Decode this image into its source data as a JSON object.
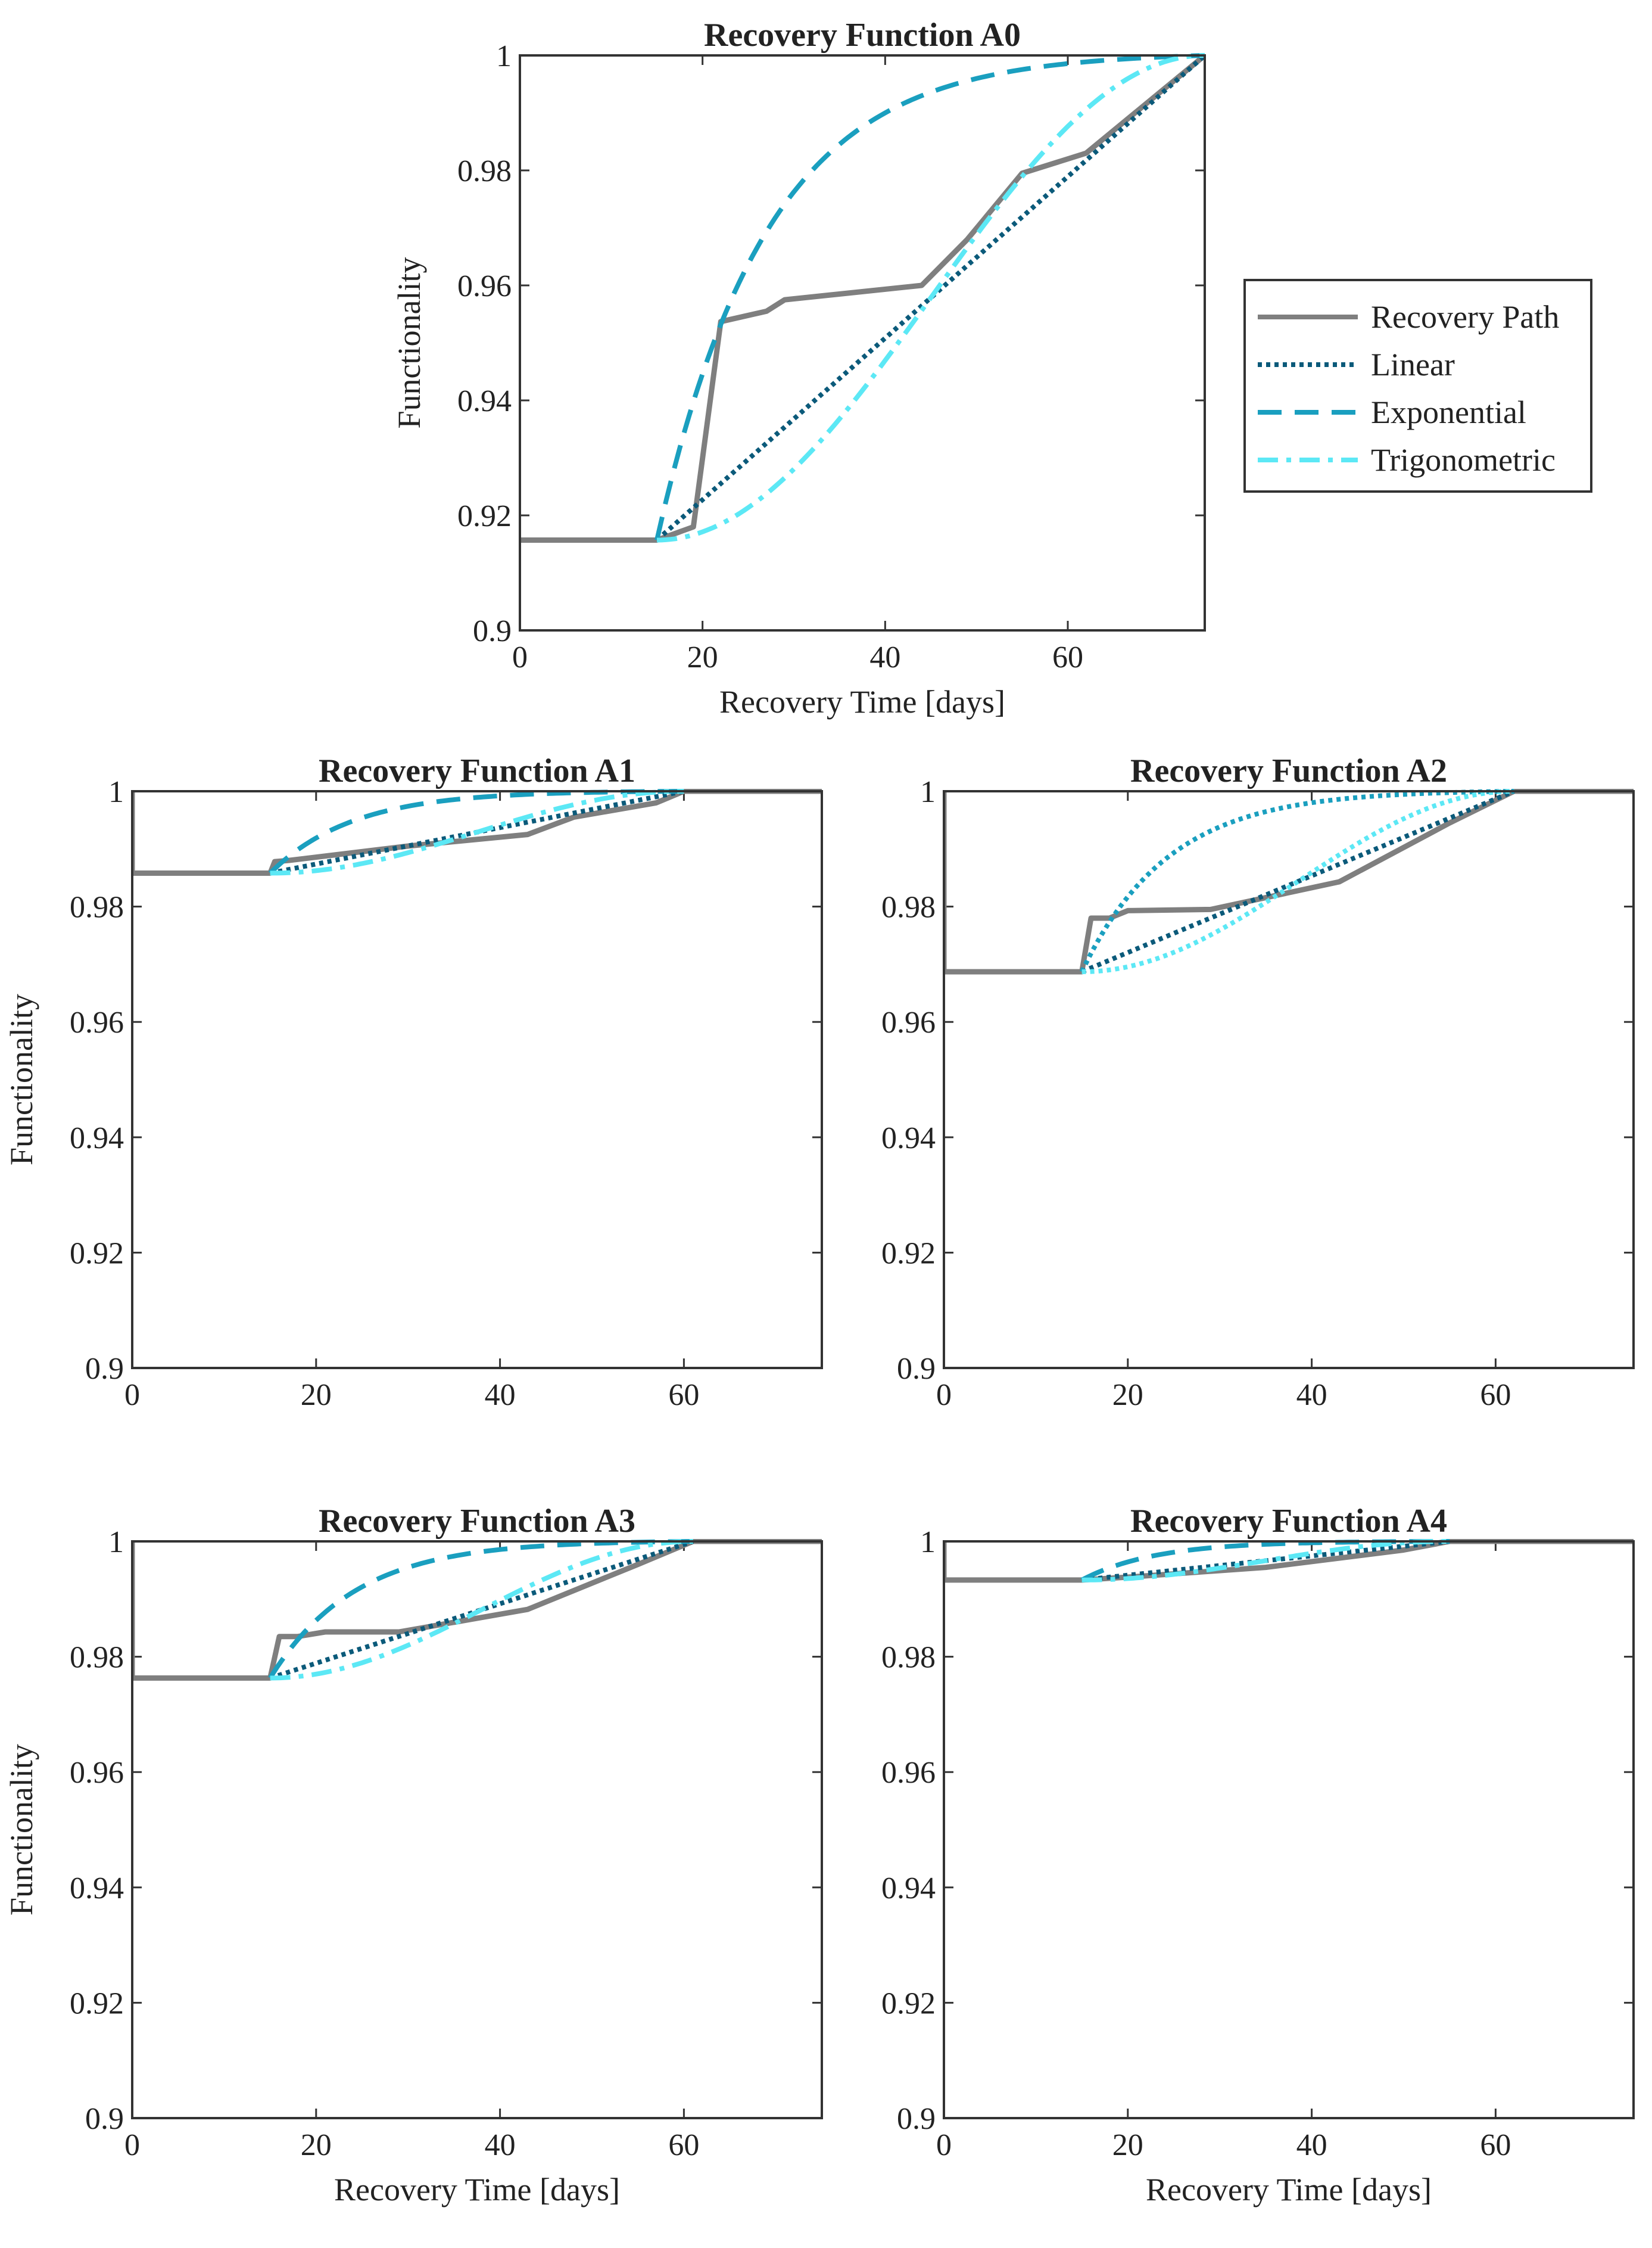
{
  "figure": {
    "ylabel": "Functionality",
    "xlabel": "Recovery Time [days]"
  },
  "legend": {
    "position": "right of first panel",
    "entries": [
      {
        "key": "path",
        "label": "Recovery Path"
      },
      {
        "key": "linear",
        "label": "Linear"
      },
      {
        "key": "exponential",
        "label": "Exponential"
      },
      {
        "key": "trig",
        "label": "Trigonometric"
      }
    ]
  },
  "series_styles": {
    "path": {
      "color": "#7f7f7f",
      "dash": "solid"
    },
    "linear": {
      "color": "#0b5a7a",
      "dash": "dotted"
    },
    "exponential": {
      "color": "#1a9fbf",
      "dash": "dashed"
    },
    "trig": {
      "color": "#5ce8f5",
      "dash": "dashdot"
    }
  },
  "chart_data": [
    {
      "type": "line",
      "title": "Recovery Function A0",
      "xlabel": "Recovery Time [days]",
      "ylabel": "Functionality",
      "xlim": [
        0,
        75
      ],
      "ylim": [
        0.9,
        1
      ],
      "xticks": [
        "0",
        "20",
        "40",
        "60"
      ],
      "yticks": [
        "0.9",
        "0.92",
        "0.94",
        "0.96",
        "0.98",
        "1"
      ],
      "legend": true,
      "series": [
        {
          "key": "path",
          "name": "Recovery Path",
          "x": [
            0,
            15,
            19,
            22,
            27,
            29,
            44,
            49,
            55,
            62,
            75
          ],
          "y": [
            0.9157,
            0.9157,
            0.918,
            0.9537,
            0.9555,
            0.9575,
            0.96,
            0.968,
            0.9795,
            0.983,
            1
          ]
        },
        {
          "key": "linear",
          "name": "Linear",
          "t0": 15,
          "T": 75,
          "f0": 0.9157,
          "shape": "linear"
        },
        {
          "key": "exponential",
          "name": "Exponential",
          "t0": 15,
          "T": 75,
          "f0": 0.9157,
          "shape": "exponential"
        },
        {
          "key": "trig",
          "name": "Trigonometric",
          "t0": 15,
          "T": 75,
          "f0": 0.9157,
          "shape": "trig"
        }
      ]
    },
    {
      "type": "line",
      "title": "Recovery Function A1",
      "xlabel": "",
      "ylabel": "Functionality",
      "xlim": [
        0,
        75
      ],
      "ylim": [
        0.9,
        1
      ],
      "xticks": [
        "0",
        "20",
        "40",
        "60"
      ],
      "yticks": [
        "0.9",
        "0.92",
        "0.94",
        "0.96",
        "0.98",
        "1"
      ],
      "legend": false,
      "series": [
        {
          "key": "path",
          "name": "Recovery Path",
          "x": [
            0,
            0,
            15,
            15.5,
            17,
            30,
            43,
            48,
            57,
            60,
            75
          ],
          "y": [
            1,
            0.9858,
            0.9858,
            0.9878,
            0.988,
            0.9905,
            0.9925,
            0.9955,
            0.998,
            1,
            1
          ]
        },
        {
          "key": "linear",
          "name": "Linear",
          "t0": 15,
          "T": 60,
          "f0": 0.9858,
          "shape": "linear"
        },
        {
          "key": "exponential",
          "name": "Exponential",
          "t0": 15,
          "T": 60,
          "f0": 0.9858,
          "shape": "exponential"
        },
        {
          "key": "trig",
          "name": "Trigonometric",
          "t0": 15,
          "T": 60,
          "f0": 0.9858,
          "shape": "trig"
        }
      ]
    },
    {
      "type": "line",
      "title": "Recovery Function A2",
      "xlabel": "",
      "ylabel": "",
      "xlim": [
        0,
        75
      ],
      "ylim": [
        0.9,
        1
      ],
      "xticks": [
        "0",
        "20",
        "40",
        "60"
      ],
      "yticks": [
        "0.9",
        "0.92",
        "0.94",
        "0.96",
        "0.98",
        "1"
      ],
      "legend": false,
      "series": [
        {
          "key": "path",
          "name": "Recovery Path",
          "x": [
            0,
            0,
            15,
            16,
            18,
            20,
            29,
            43,
            55,
            62,
            75
          ],
          "y": [
            1,
            0.9687,
            0.9687,
            0.978,
            0.978,
            0.9793,
            0.9795,
            0.9843,
            0.9945,
            1,
            1
          ]
        },
        {
          "key": "linear",
          "name": "Linear",
          "t0": 15,
          "T": 62,
          "f0": 0.9687,
          "shape": "linear"
        },
        {
          "key": "exponential",
          "name": "Exponential",
          "t0": 15,
          "T": 62,
          "f0": 0.9687,
          "shape": "exponential",
          "dash_override": "dotted"
        },
        {
          "key": "trig",
          "name": "Trigonometric",
          "t0": 15,
          "T": 62,
          "f0": 0.9687,
          "shape": "trig",
          "dash_override": "dotted"
        }
      ]
    },
    {
      "type": "line",
      "title": "Recovery Function A3",
      "xlabel": "Recovery Time [days]",
      "ylabel": "Functionality",
      "xlim": [
        0,
        75
      ],
      "ylim": [
        0.9,
        1
      ],
      "xticks": [
        "0",
        "20",
        "40",
        "60"
      ],
      "yticks": [
        "0.9",
        "0.92",
        "0.94",
        "0.96",
        "0.98",
        "1"
      ],
      "legend": false,
      "series": [
        {
          "key": "path",
          "name": "Recovery Path",
          "x": [
            0,
            0,
            15,
            16,
            18,
            21,
            29,
            43,
            55,
            61,
            75
          ],
          "y": [
            1,
            0.9763,
            0.9763,
            0.9835,
            0.9835,
            0.9843,
            0.9843,
            0.9882,
            0.996,
            1,
            1
          ]
        },
        {
          "key": "linear",
          "name": "Linear",
          "t0": 15,
          "T": 61,
          "f0": 0.9763,
          "shape": "linear"
        },
        {
          "key": "exponential",
          "name": "Exponential",
          "t0": 15,
          "T": 61,
          "f0": 0.9763,
          "shape": "exponential"
        },
        {
          "key": "trig",
          "name": "Trigonometric",
          "t0": 15,
          "T": 61,
          "f0": 0.9763,
          "shape": "trig"
        }
      ]
    },
    {
      "type": "line",
      "title": "Recovery Function A4",
      "xlabel": "Recovery Time [days]",
      "ylabel": "",
      "xlim": [
        0,
        75
      ],
      "ylim": [
        0.9,
        1
      ],
      "xticks": [
        "0",
        "20",
        "40",
        "60"
      ],
      "yticks": [
        "0.9",
        "0.92",
        "0.94",
        "0.96",
        "0.98",
        "1"
      ],
      "legend": false,
      "series": [
        {
          "key": "path",
          "name": "Recovery Path",
          "x": [
            0,
            0,
            15,
            20,
            35,
            50,
            55,
            75
          ],
          "y": [
            1,
            0.9933,
            0.9933,
            0.9938,
            0.9955,
            0.9985,
            1,
            1
          ]
        },
        {
          "key": "linear",
          "name": "Linear",
          "t0": 15,
          "T": 55,
          "f0": 0.9933,
          "shape": "linear"
        },
        {
          "key": "exponential",
          "name": "Exponential",
          "t0": 15,
          "T": 55,
          "f0": 0.9933,
          "shape": "exponential"
        },
        {
          "key": "trig",
          "name": "Trigonometric",
          "t0": 15,
          "T": 55,
          "f0": 0.9933,
          "shape": "trig"
        }
      ]
    }
  ]
}
